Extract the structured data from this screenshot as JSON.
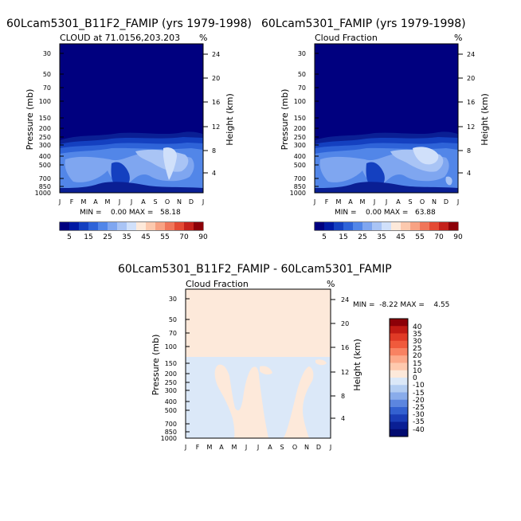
{
  "chart_data": [
    {
      "type": "heatmap",
      "title": "60Lcam5301_B11F2_FAMIP (yrs 1979-1998)",
      "subtitle": "CLOUD at 71.0156,203.203",
      "units": "%",
      "ylabel": "Pressure (mb)",
      "ylabel_right": "Height (km)",
      "months": [
        "J",
        "F",
        "M",
        "A",
        "M",
        "J",
        "J",
        "A",
        "S",
        "O",
        "N",
        "D",
        "J"
      ],
      "pressure_ticks": [
        "30",
        "50",
        "70",
        "100",
        "150",
        "200",
        "250",
        "300",
        "400",
        "500",
        "700",
        "850",
        "1000"
      ],
      "height_ticks": [
        "24",
        "20",
        "16",
        "12",
        "8",
        "4"
      ],
      "min": "0.00",
      "max": "58.18",
      "stats_text": "MIN =    0.00 MAX =   58.18",
      "colorbar_labels": [
        "5",
        "15",
        "25",
        "35",
        "45",
        "55",
        "70",
        "90"
      ]
    },
    {
      "type": "heatmap",
      "title": "60Lcam5301_FAMIP (yrs 1979-1998)",
      "subtitle": "Cloud Fraction",
      "units": "%",
      "ylabel": "Pressure (mb)",
      "ylabel_right": "Height (km)",
      "months": [
        "J",
        "F",
        "M",
        "A",
        "M",
        "J",
        "J",
        "A",
        "S",
        "O",
        "N",
        "D",
        "J"
      ],
      "pressure_ticks": [
        "30",
        "50",
        "70",
        "100",
        "150",
        "200",
        "250",
        "300",
        "400",
        "500",
        "700",
        "850",
        "1000"
      ],
      "height_ticks": [
        "24",
        "20",
        "16",
        "12",
        "8",
        "4"
      ],
      "min": "0.00",
      "max": "63.88",
      "stats_text": "MIN =    0.00 MAX =   63.88",
      "colorbar_labels": [
        "5",
        "15",
        "25",
        "35",
        "45",
        "55",
        "70",
        "90"
      ]
    },
    {
      "type": "heatmap",
      "title": "60Lcam5301_B11F2_FAMIP - 60Lcam5301_FAMIP",
      "subtitle": "Cloud Fraction",
      "units": "%",
      "ylabel": "Pressure (mb)",
      "ylabel_right": "Height (km)",
      "months": [
        "J",
        "F",
        "M",
        "A",
        "M",
        "J",
        "J",
        "A",
        "S",
        "O",
        "N",
        "D",
        "J"
      ],
      "pressure_ticks": [
        "30",
        "50",
        "70",
        "100",
        "150",
        "200",
        "250",
        "300",
        "400",
        "500",
        "700",
        "850",
        "1000"
      ],
      "height_ticks": [
        "24",
        "20",
        "16",
        "12",
        "8",
        "4"
      ],
      "min": "-8.22",
      "max": "4.55",
      "stats_text": "MIN =  -8.22 MAX =    4.55",
      "colorbar_labels": [
        "40",
        "35",
        "30",
        "25",
        "20",
        "15",
        "10",
        "0",
        "-10",
        "-15",
        "-20",
        "-25",
        "-30",
        "-35",
        "-40"
      ]
    }
  ],
  "colors": {
    "abs_scale": [
      "#00007f",
      "#0019a3",
      "#1440c0",
      "#2e63d8",
      "#5286e8",
      "#7fa6f0",
      "#a9c4f5",
      "#d0e0fa",
      "#fde9da",
      "#fcc9ae",
      "#f8a283",
      "#f0765a",
      "#e44a34",
      "#c4211b",
      "#8c0008"
    ],
    "diff_scale": [
      "#8c0008",
      "#c01a14",
      "#e03a26",
      "#f05a3c",
      "#f88262",
      "#fca98a",
      "#fec9ae",
      "#fde9da",
      "#dbe8f8",
      "#b3cdf2",
      "#89aceb",
      "#5c86df",
      "#3361d0",
      "#1a3db6",
      "#0a1f94",
      "#020b70"
    ],
    "mid_blue_1": "#2747c4",
    "mid_blue_2": "#5c84e0",
    "light_blue": "#a4c1f2",
    "pale_blue": "#cadcf8",
    "pale_orange": "#fde9da",
    "pale_blue_diff": "#dbe8f8"
  }
}
